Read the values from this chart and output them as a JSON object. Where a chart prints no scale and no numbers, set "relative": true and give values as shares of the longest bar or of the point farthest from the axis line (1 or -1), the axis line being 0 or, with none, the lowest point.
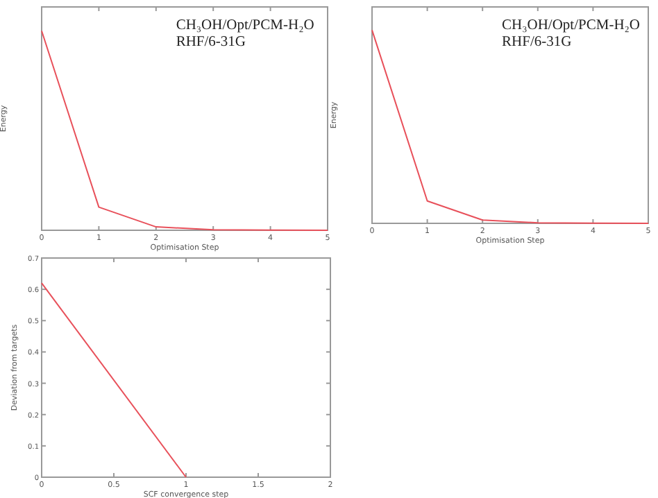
{
  "chart_data": [
    {
      "type": "line",
      "xlabel": "Optimisation Step",
      "ylabel": "Energy",
      "annotations": [
        "CH₃OH/Opt/PCM-H₂O",
        "RHF/6-31G"
      ],
      "x": [
        0,
        1,
        2,
        3,
        4,
        5
      ],
      "xlim": [
        0,
        5
      ],
      "xticks": [
        0,
        1,
        2,
        3,
        4,
        5
      ],
      "relative": true,
      "grid": false,
      "marker": "none",
      "series": [
        {
          "color": "#e8505a",
          "values": [
            1,
            0.116,
            0.017,
            0.003,
            0.001,
            0
          ]
        }
      ]
    },
    {
      "type": "line",
      "xlabel": "Optimisation Step",
      "ylabel": "Energy",
      "annotations": [
        "CH₃OH/Opt/PCM-H₂O",
        "RHF/6-31G"
      ],
      "x": [
        0,
        1,
        2,
        3,
        4,
        5
      ],
      "xlim": [
        0,
        5
      ],
      "xticks": [
        0,
        1,
        2,
        3,
        4,
        5
      ],
      "relative": true,
      "grid": false,
      "marker": "none",
      "series": [
        {
          "color": "#e8505a",
          "values": [
            1,
            0.116,
            0.017,
            0.003,
            0.001,
            0
          ]
        }
      ]
    },
    {
      "type": "line",
      "xlabel": "SCF convergence step",
      "ylabel": "Deviation from targets",
      "x": [
        0,
        1
      ],
      "xlim": [
        0,
        2
      ],
      "xticks": [
        0,
        0.5,
        1,
        1.5,
        2
      ],
      "ylim": [
        0,
        0.7
      ],
      "yticks": [
        0,
        0.1,
        0.2,
        0.3,
        0.4,
        0.5,
        0.6,
        0.7
      ],
      "grid": false,
      "marker": "none",
      "series": [
        {
          "color": "#e8505a",
          "values": [
            0.62,
            0
          ]
        }
      ]
    }
  ]
}
